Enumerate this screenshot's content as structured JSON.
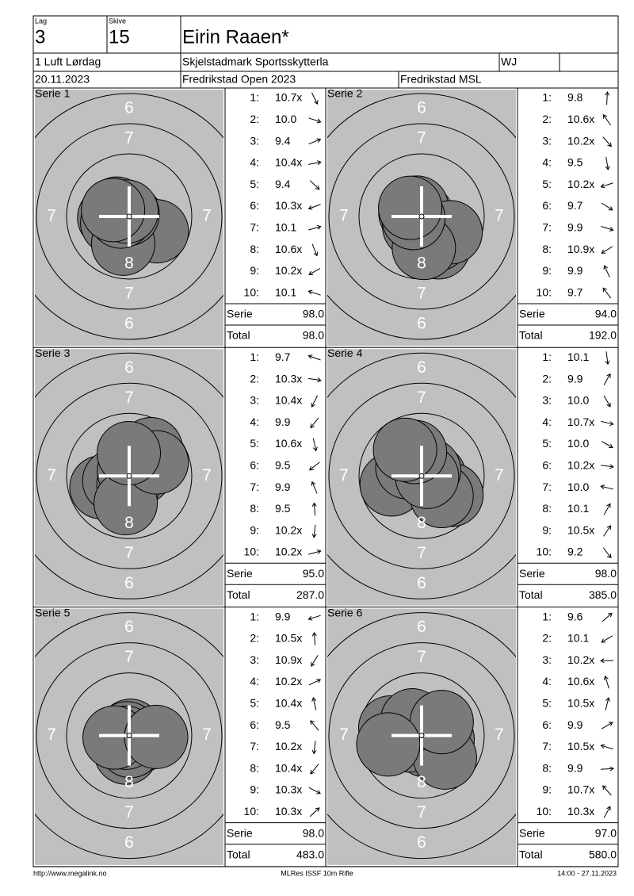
{
  "header": {
    "lag_label": "Lag",
    "lag": "3",
    "skive_label": "Skive",
    "skive": "15",
    "name": "Eirin Raaen*",
    "class": "1 Luft Lørdag",
    "club": "Skjelstadmark Sportsskytterla",
    "category": "WJ",
    "date": "20.11.2023",
    "competition": "Fredrikstad Open 2023",
    "venue": "Fredrikstad MSL"
  },
  "rings": [
    "6",
    "7",
    "8"
  ],
  "shot_numbers": [
    "1:",
    "2:",
    "3:",
    "4:",
    "5:",
    "6:",
    "7:",
    "8:",
    "9:",
    "10:"
  ],
  "serie_label": "Serie",
  "total_label": "Total",
  "series": [
    {
      "title": "Serie 1",
      "shots": [
        "10.7x",
        "10.0",
        "9.4",
        "10.4x",
        "9.4",
        "10.3x",
        "10.1",
        "10.6x",
        "10.2x",
        "10.1"
      ],
      "serie": "98.0",
      "total": "98.0"
    },
    {
      "title": "Serie 2",
      "shots": [
        "9.8",
        "10.6x",
        "10.2x",
        "9.5",
        "10.2x",
        "9.7",
        "9.9",
        "10.9x",
        "9.9",
        "9.7"
      ],
      "serie": "94.0",
      "total": "192.0"
    },
    {
      "title": "Serie 3",
      "shots": [
        "9.7",
        "10.3x",
        "10.4x",
        "9.9",
        "10.6x",
        "9.5",
        "9.9",
        "9.5",
        "10.2x",
        "10.2x"
      ],
      "serie": "95.0",
      "total": "287.0"
    },
    {
      "title": "Serie 4",
      "shots": [
        "10.1",
        "9.9",
        "10.0",
        "10.7x",
        "10.0",
        "10.2x",
        "10.0",
        "10.1",
        "10.5x",
        "9.2"
      ],
      "serie": "98.0",
      "total": "385.0"
    },
    {
      "title": "Serie 5",
      "shots": [
        "9.9",
        "10.5x",
        "10.9x",
        "10.2x",
        "10.4x",
        "9.5",
        "10.2x",
        "10.4x",
        "10.3x",
        "10.3x"
      ],
      "serie": "98.0",
      "total": "483.0"
    },
    {
      "title": "Serie 6",
      "shots": [
        "9.6",
        "10.1",
        "10.2x",
        "10.6x",
        "10.5x",
        "9.9",
        "10.5x",
        "9.9",
        "10.7x",
        "10.3x"
      ],
      "serie": "97.0",
      "total": "580.0"
    }
  ],
  "footer": {
    "url": "http://www.megalink.no",
    "software": "MLRes ISSF 10m Rifle",
    "timestamp": "14:00 - 27.11.2023"
  }
}
